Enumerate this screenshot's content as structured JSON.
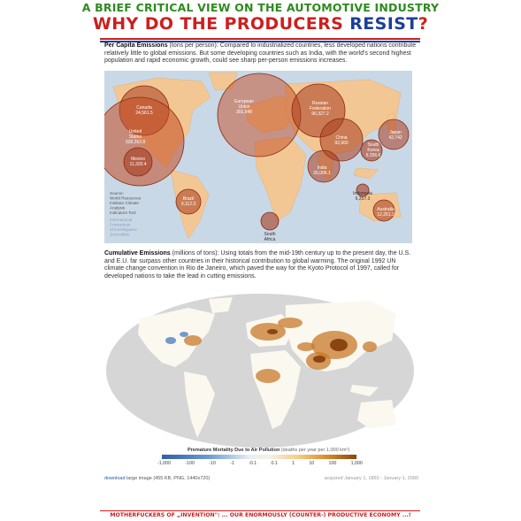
{
  "header": {
    "subtitle": "A BRIEF CRITICAL VIEW ON THE AUTOMOTIVE INDUSTRY",
    "title_part1": "WHY DO THE PRODUCERS ",
    "title_part2": "RESIST",
    "title_part3": "?"
  },
  "per_capita": {
    "heading": "Per Capita Emissions",
    "units": " (tons per person): ",
    "body": "Compared to industrialized countries, less developed nations contribute relatively little to global emissions. But some developing countries such as India, with the world's second highest population and rapid economic growth, could see sharp per-person emissions increases."
  },
  "bubble_map": {
    "labels": {
      "canada_name": "Canada",
      "canada_value": "24,561.5",
      "us_name1": "United",
      "us_name2": "States",
      "us_value": "328,263.8",
      "mexico_name": "Mexico",
      "mexico_value": "11,320.4",
      "brazil_name": "Brazil",
      "brazil_value": "9,112.3",
      "eu_name1": "European",
      "eu_name2": "Union",
      "eu_value": "301,948",
      "russia_name1": "Russian",
      "russia_name2": "Federation",
      "russia_value": "90,327.2",
      "china_name": "China",
      "china_value": "92,960",
      "japan_name": "Japan",
      "japan_value": "42,742",
      "korea_name1": "South",
      "korea_name2": "Korea",
      "korea_value": "9,256.6",
      "india_name": "India",
      "india_value": "26,006.1",
      "indonesia_name": "Indonesia",
      "indonesia_value": "6,257.3",
      "australia_name": "Australia",
      "australia_value": "12,251.2",
      "safrica_name1": "South",
      "safrica_name2": "Africa"
    },
    "source_lines": [
      "Source:",
      "World Resources",
      "Institute Climate",
      "Analysis",
      "Indicators Tool"
    ],
    "consortium_lines": [
      "International",
      "Consortium",
      "of Investigative",
      "Journalists"
    ]
  },
  "cumulative": {
    "heading": "Cumulative Emissions",
    "units": " (millions of tons): ",
    "body": "Using totals from the mid-19th century up to the present day, the U.S. and E.U. far surpass other countries in their historical contribution to global warming. The original 1992 UN climate change convention in Rio de Janeiro, which paved the way for the Kyoto Protocol of 1997, called for developed nations to take the lead in cutting emissions."
  },
  "mortality_legend": {
    "title": "Premature Mortality Due to Air Pollution",
    "units": " (deaths per year per 1,000 km²)",
    "ticks": [
      "-1,000",
      "-100",
      "-10",
      "-1",
      "-0.1",
      "0.1",
      "1",
      "10",
      "100",
      "1,000"
    ]
  },
  "footer": {
    "download_link": "download",
    "download_rest": " large image (455 KB, PNG, 1440x720)",
    "acquired": "acquired January 1, 1850 - January 1, 2000"
  },
  "bottom_banner": "MOTHERFUCKERS OF „INVENTION\": ... OUR ENORMOUSLY (COUNTER-) PRODUCTIVE ECONOMY ...!"
}
